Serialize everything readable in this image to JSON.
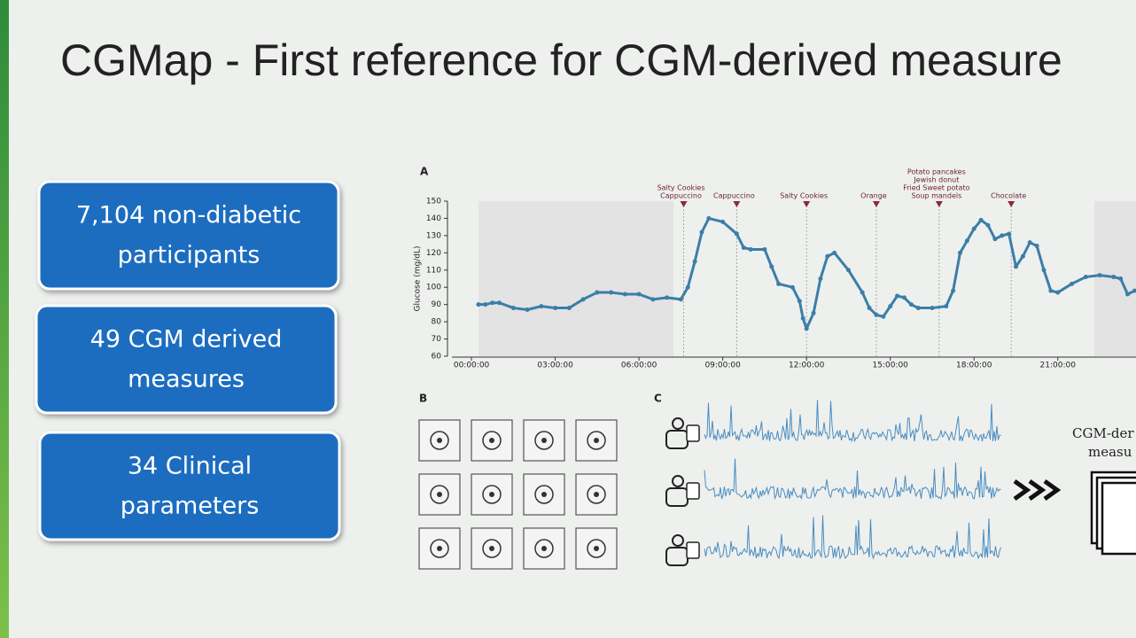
{
  "title": "CGMap - First reference for CGM-derived measure",
  "boxes": [
    {
      "lines": [
        "7,104 non-diabetic",
        "participants"
      ]
    },
    {
      "lines": [
        "49 CGM derived",
        "measures"
      ]
    },
    {
      "lines": [
        "34 Clinical",
        "parameters"
      ]
    }
  ],
  "panel_labels": [
    "A",
    "B",
    "C"
  ],
  "chart_data": {
    "type": "line",
    "ylabel": "Glucose (mg/dL)",
    "xlim": [
      -0.7,
      23.8
    ],
    "ylim": [
      60,
      150
    ],
    "xticks": [
      {
        "value": 0,
        "label": "00:00:00"
      },
      {
        "value": 3,
        "label": "03:00:00"
      },
      {
        "value": 6,
        "label": "06:00:00"
      },
      {
        "value": 9,
        "label": "09:00:00"
      },
      {
        "value": 12,
        "label": "12:00:00"
      },
      {
        "value": 15,
        "label": "15:00:00"
      },
      {
        "value": 18,
        "label": "18:00:00"
      },
      {
        "value": 21,
        "label": "21:00:00"
      }
    ],
    "yticks": [
      60,
      70,
      80,
      90,
      100,
      110,
      120,
      130,
      140,
      150
    ],
    "x": [
      0.25,
      0.5,
      0.75,
      1.0,
      1.5,
      2.0,
      2.5,
      3.0,
      3.5,
      4.0,
      4.5,
      5.0,
      5.5,
      6.0,
      6.5,
      7.0,
      7.5,
      7.75,
      8.0,
      8.25,
      8.5,
      9.0,
      9.5,
      9.75,
      10.0,
      10.5,
      10.75,
      11.0,
      11.5,
      11.75,
      11.875,
      12.0,
      12.25,
      12.5,
      12.75,
      13.0,
      13.5,
      14.0,
      14.25,
      14.5,
      14.75,
      15.0,
      15.25,
      15.5,
      15.75,
      16.0,
      16.5,
      17.0,
      17.25,
      17.5,
      17.75,
      18.0,
      18.25,
      18.5,
      18.75,
      19.0,
      19.25,
      19.5,
      19.75,
      20.0,
      20.25,
      20.5,
      20.75,
      21.0,
      21.5,
      22.0,
      22.5,
      23.0,
      23.25,
      23.5,
      23.75
    ],
    "series": [
      {
        "color": "#3b7ea8",
        "values": [
          90,
          90,
          91,
          91,
          88,
          87,
          89,
          88,
          88,
          93,
          97,
          97,
          96,
          96,
          93,
          94,
          93,
          100,
          115,
          132,
          140,
          138,
          131,
          123,
          122,
          122,
          112,
          102,
          100,
          92,
          82,
          76,
          85,
          105,
          118,
          120,
          110,
          97,
          88,
          84,
          83,
          89,
          95,
          94,
          90,
          88,
          88,
          89,
          98,
          120,
          127,
          134,
          139,
          136,
          128,
          130,
          131,
          112,
          118,
          126,
          124,
          110,
          98,
          97,
          102,
          106,
          107,
          106,
          105,
          96,
          98
        ]
      }
    ],
    "events": [
      {
        "x": 7.6,
        "labels": [
          "Salty Cookies",
          "Cappuccino"
        ]
      },
      {
        "x": 9.5,
        "labels": [
          "Cappuccino"
        ]
      },
      {
        "x": 12.0,
        "labels": [
          "Salty Cookies"
        ]
      },
      {
        "x": 14.5,
        "labels": [
          "Orange"
        ]
      },
      {
        "x": 16.75,
        "labels": [
          "Potato pancakes",
          "Jewish donut",
          "Fried Sweet potato",
          "Soup mandels"
        ]
      },
      {
        "x": 19.33,
        "labels": [
          "Chocolate"
        ]
      }
    ]
  },
  "panel_c_text": [
    "CGM-der",
    "measu"
  ]
}
